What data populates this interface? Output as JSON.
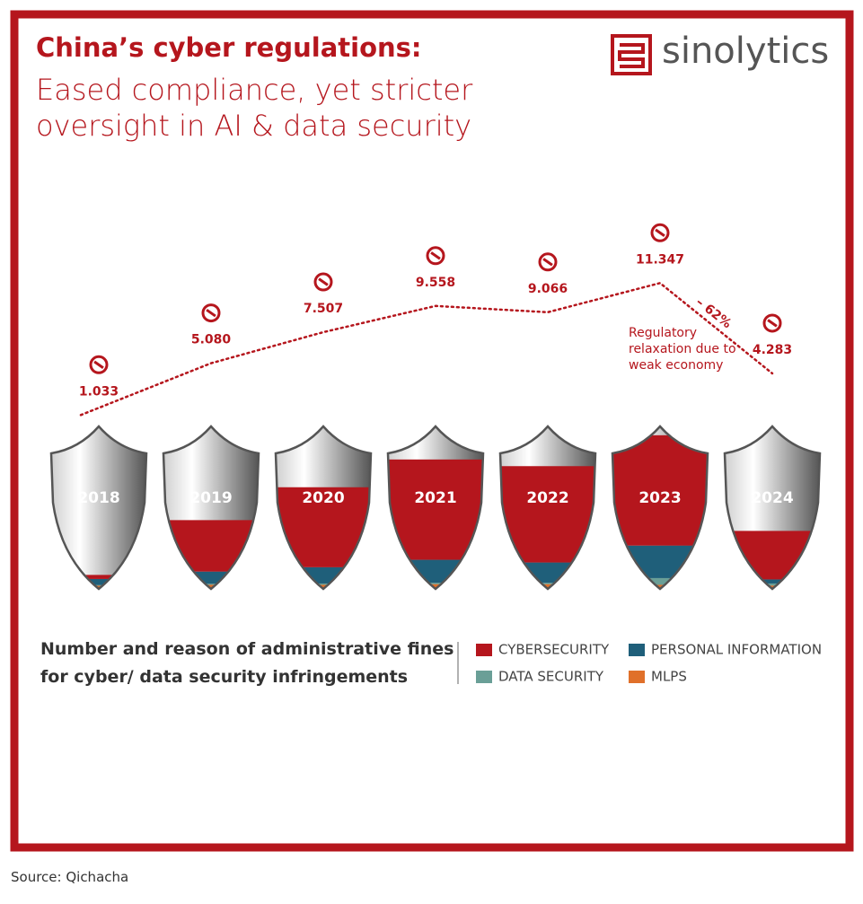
{
  "logo": "sinolytics",
  "source": "Source: Qichacha",
  "chart_data": {
    "type": "shield",
    "title": "China’s cyber regulations:",
    "subtitle": "Eased compliance, yet stricter oversight in AI & data security",
    "categories": [
      "2018",
      "2019",
      "2020",
      "2021",
      "2022",
      "2023",
      "2024"
    ],
    "totals": [
      1033,
      5080,
      7507,
      9558,
      9066,
      11347,
      4283
    ],
    "value_labels": [
      "1.033",
      "5.080",
      "7.507",
      "9.558",
      "9.066",
      "11.347",
      "4.283"
    ],
    "series": [
      {
        "name": "MLPS",
        "color": "#e0702a",
        "values": [
          233,
          300,
          300,
          350,
          350,
          300,
          250
        ]
      },
      {
        "name": "DATA SECURITY",
        "color": "#6a9f97",
        "values": [
          50,
          80,
          100,
          100,
          100,
          500,
          150
        ]
      },
      {
        "name": "PERSONAL INFORMATION",
        "color": "#1f5f7a",
        "values": [
          450,
          900,
          1200,
          1700,
          1500,
          2400,
          300
        ]
      },
      {
        "name": "CYBERSECURITY",
        "color": "#b5161d",
        "values": [
          300,
          3800,
          5907,
          7408,
          7116,
          8147,
          3583
        ]
      }
    ],
    "ylim": [
      0,
      12000
    ],
    "annotations": [
      "– 62%",
      "Regulatory relaxation due to weak economy"
    ],
    "legend_title": "Number and reason of administrative fines for cyber/ data security infringements"
  }
}
